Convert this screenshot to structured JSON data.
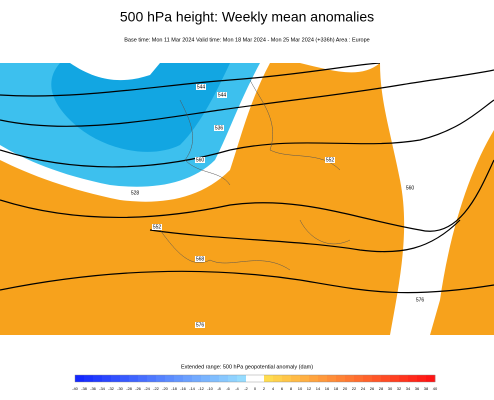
{
  "header": {
    "title": "500 hPa height: Weekly mean anomalies",
    "subtitle": "Base time: Mon 11 Mar 2024 Valid time: Mon 18 Mar 2024 - Mon 25 Mar 2024 (+336h) Area : Europe"
  },
  "map": {
    "contour_labels": [
      "528",
      "536",
      "544",
      "544",
      "552",
      "552",
      "560",
      "560",
      "568",
      "576",
      "576"
    ]
  },
  "colorbar": {
    "label": "Extended range: 500 hPa geopotential anomaly (dam)",
    "ticks": [
      -40,
      -38,
      -36,
      -34,
      -32,
      -30,
      -28,
      -26,
      -24,
      -22,
      -20,
      -18,
      -16,
      -14,
      -12,
      -10,
      -8,
      -6,
      -4,
      -2,
      0,
      2,
      4,
      6,
      8,
      10,
      12,
      14,
      16,
      18,
      20,
      22,
      24,
      26,
      28,
      30,
      32,
      34,
      36,
      38,
      40
    ]
  }
}
